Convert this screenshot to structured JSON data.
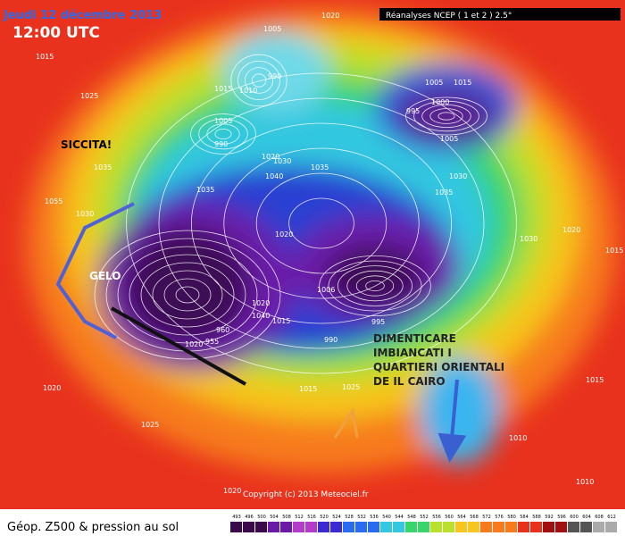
{
  "header": {
    "date": "Jeudi 12 décembre 2013",
    "time": "12:00 UTC",
    "source": "Réanalyses NCEP ( 1 et 2 ) 2.5°"
  },
  "annotations": {
    "drought": "SICCITA!",
    "frost": "GELO",
    "message": [
      "DIMENTICARE",
      "IMBIANCATI I",
      "QUARTIERI ORIENTALI",
      "DE IL CAIRO"
    ]
  },
  "pressure_labels": [
    "1020",
    "1015",
    "1005",
    "990",
    "1015",
    "1010",
    "1025",
    "1005",
    "990",
    "1020",
    "1030",
    "1035",
    "1040",
    "1035",
    "1035",
    "1055",
    "1030",
    "1020",
    "1005",
    "1015",
    "1000",
    "995",
    "1005",
    "1030",
    "1035",
    "1030",
    "1020",
    "1015",
    "1006",
    "1020",
    "1040",
    "1015",
    "960",
    "955",
    "1020",
    "990",
    "995",
    "1015",
    "1020",
    "1025",
    "1015",
    "1025",
    "1010",
    "1010",
    "1020"
  ],
  "copyright": "Copyright (c) 2013 Meteociel.fr",
  "legend": {
    "title": "Géop. Z500 & pression au sol",
    "scale": [
      "493",
      "496",
      "500",
      "504",
      "508",
      "512",
      "516",
      "520",
      "524",
      "528",
      "532",
      "536",
      "540",
      "544",
      "548",
      "552",
      "556",
      "560",
      "564",
      "568",
      "572",
      "576",
      "580",
      "584",
      "588",
      "592",
      "596",
      "600",
      "604",
      "608",
      "612"
    ]
  }
}
